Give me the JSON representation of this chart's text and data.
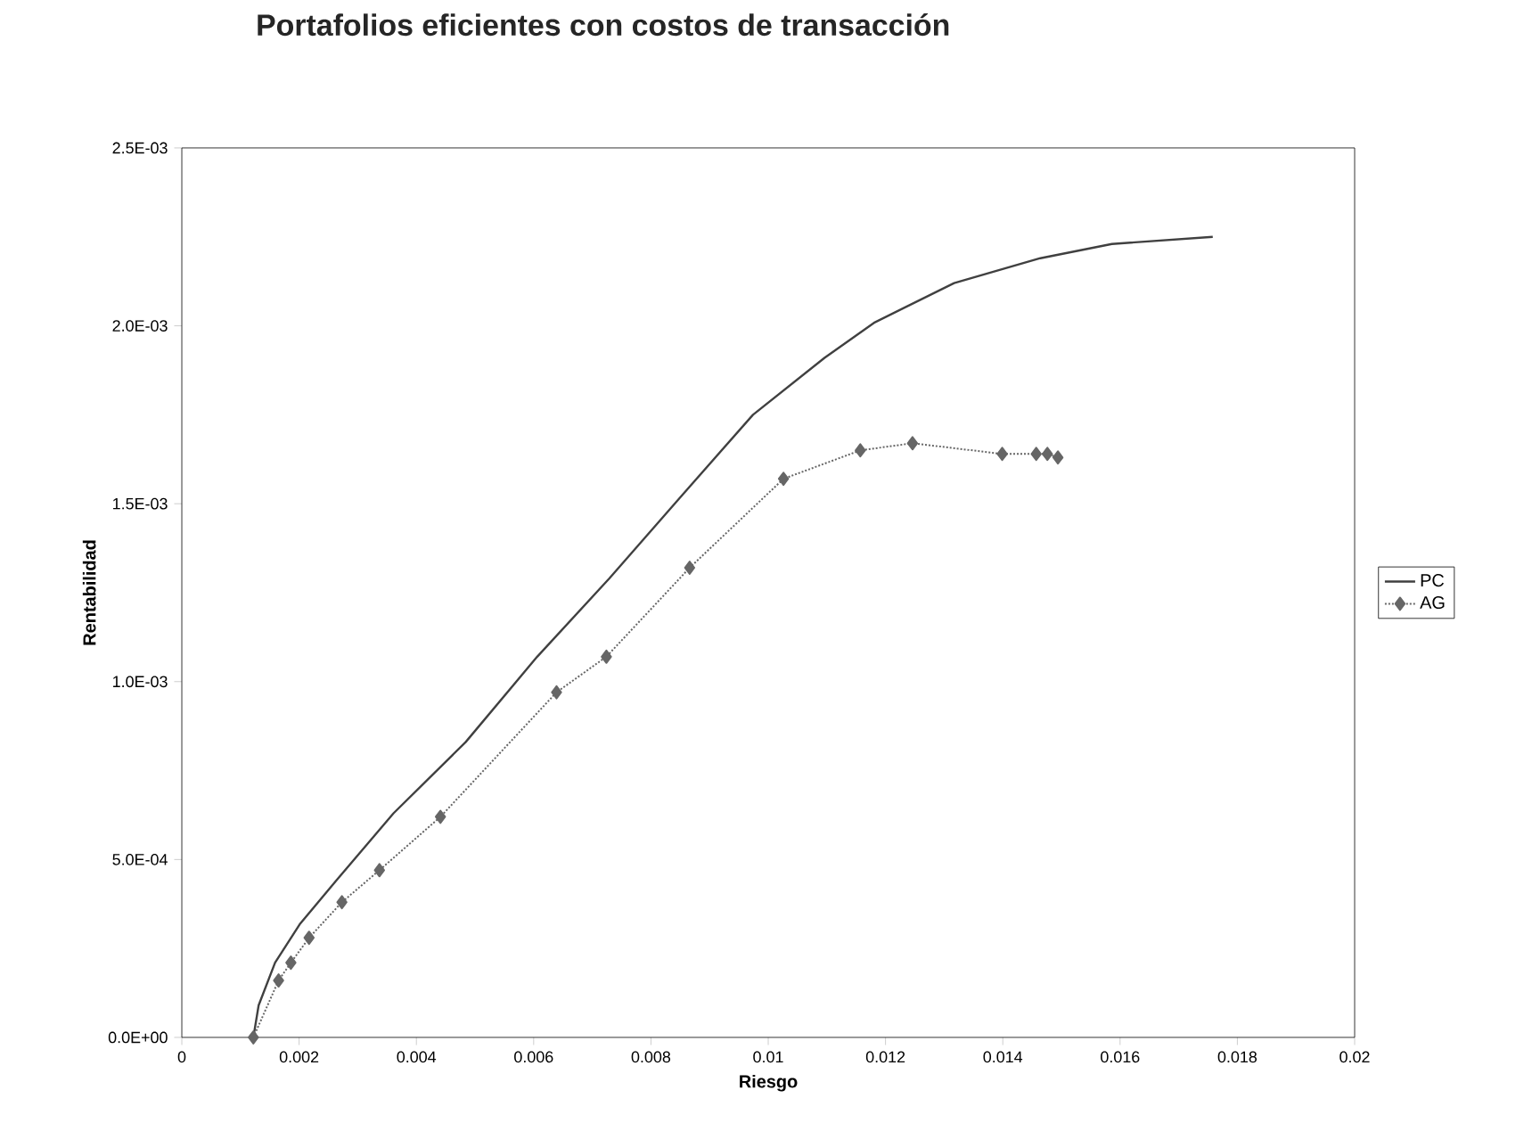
{
  "chart_data": {
    "type": "line",
    "title": "Portafolios eficientes con costos de transacción",
    "xlabel": "Riesgo",
    "ylabel": "Rentabilidad",
    "xlim": [
      0,
      0.02
    ],
    "xticks": [
      0,
      0.002,
      0.004,
      0.006,
      0.008,
      0.01,
      0.012,
      0.014,
      0.016,
      0.018,
      0.02
    ],
    "ylim": [
      0,
      0.0025
    ],
    "yticks": [
      {
        "value": 0,
        "label": "0.0E+00"
      },
      {
        "value": 0.0005,
        "label": "5.0E-04"
      },
      {
        "value": 0.001,
        "label": "1.0E-03"
      },
      {
        "value": 0.0015,
        "label": "1.5E-03"
      },
      {
        "value": 0.002,
        "label": "2.0E-03"
      },
      {
        "value": 0.0025,
        "label": "2.5E-03"
      }
    ],
    "grid": false,
    "legend": "right",
    "series": [
      {
        "name": "PC",
        "color": "#404040",
        "marker": "none",
        "line_style": "solid",
        "x": [
          0.00122,
          0.00131,
          0.00159,
          0.00202,
          0.00263,
          0.00361,
          0.00484,
          0.00606,
          0.00729,
          0.00851,
          0.00974,
          0.01096,
          0.01182,
          0.01317,
          0.01464,
          0.01586,
          0.01758
        ],
        "values": [
          0,
          9e-05,
          0.00021,
          0.00032,
          0.00044,
          0.00063,
          0.00083,
          0.00107,
          0.00129,
          0.00152,
          0.00175,
          0.00191,
          0.00201,
          0.00212,
          0.00219,
          0.00223,
          0.00225
        ]
      },
      {
        "name": "AG",
        "color": "#666666",
        "marker": "diamond",
        "line_style": "dotted",
        "x": [
          0.00122,
          0.00165,
          0.00186,
          0.00217,
          0.00273,
          0.00337,
          0.00441,
          0.00639,
          0.00724,
          0.00866,
          0.01026,
          0.01157,
          0.01246,
          0.01399,
          0.01457,
          0.01476,
          0.01494
        ],
        "values": [
          0,
          0.00016,
          0.00021,
          0.00028,
          0.00038,
          0.00047,
          0.00062,
          0.00097,
          0.00107,
          0.00132,
          0.00157,
          0.00165,
          0.00167,
          0.00164,
          0.00164,
          0.00164,
          0.00163
        ]
      }
    ]
  }
}
